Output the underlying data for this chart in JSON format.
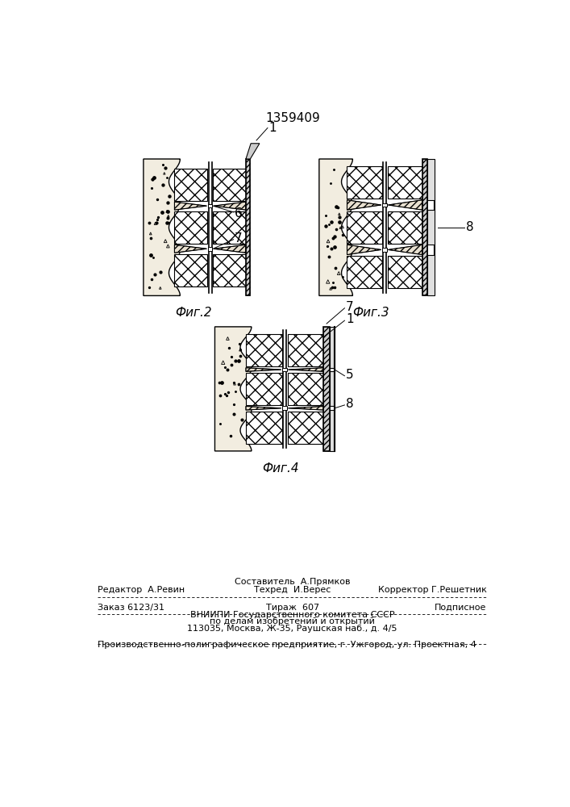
{
  "patent_number": "1359409",
  "fig2_label": "Фиг.2",
  "fig3_label": "Фиг.3",
  "fig4_label": "Фиг.4",
  "footer_line1": "Составитель  А.Прямков",
  "footer_line2_left": "Редактор  А.Ревин",
  "footer_line2_mid": "Техред  И.Верес",
  "footer_line2_right": "Корректор Г.Решетник",
  "footer_line3_left": "Заказ 6123/31",
  "footer_line3_mid": "Тираж  607",
  "footer_line3_right": "Подписное",
  "footer_line4": "ВНИИПИ Государственного комитета СССР",
  "footer_line5": "по делам изобретений и открытий",
  "footer_line6": "113035, Москва, Ж-35, Раушская наб., д. 4/5",
  "footer_line7": "Производственно-полиграфическое предприятие, г. Ужгород, ул. Проектная, 4",
  "bg_color": "#ffffff"
}
